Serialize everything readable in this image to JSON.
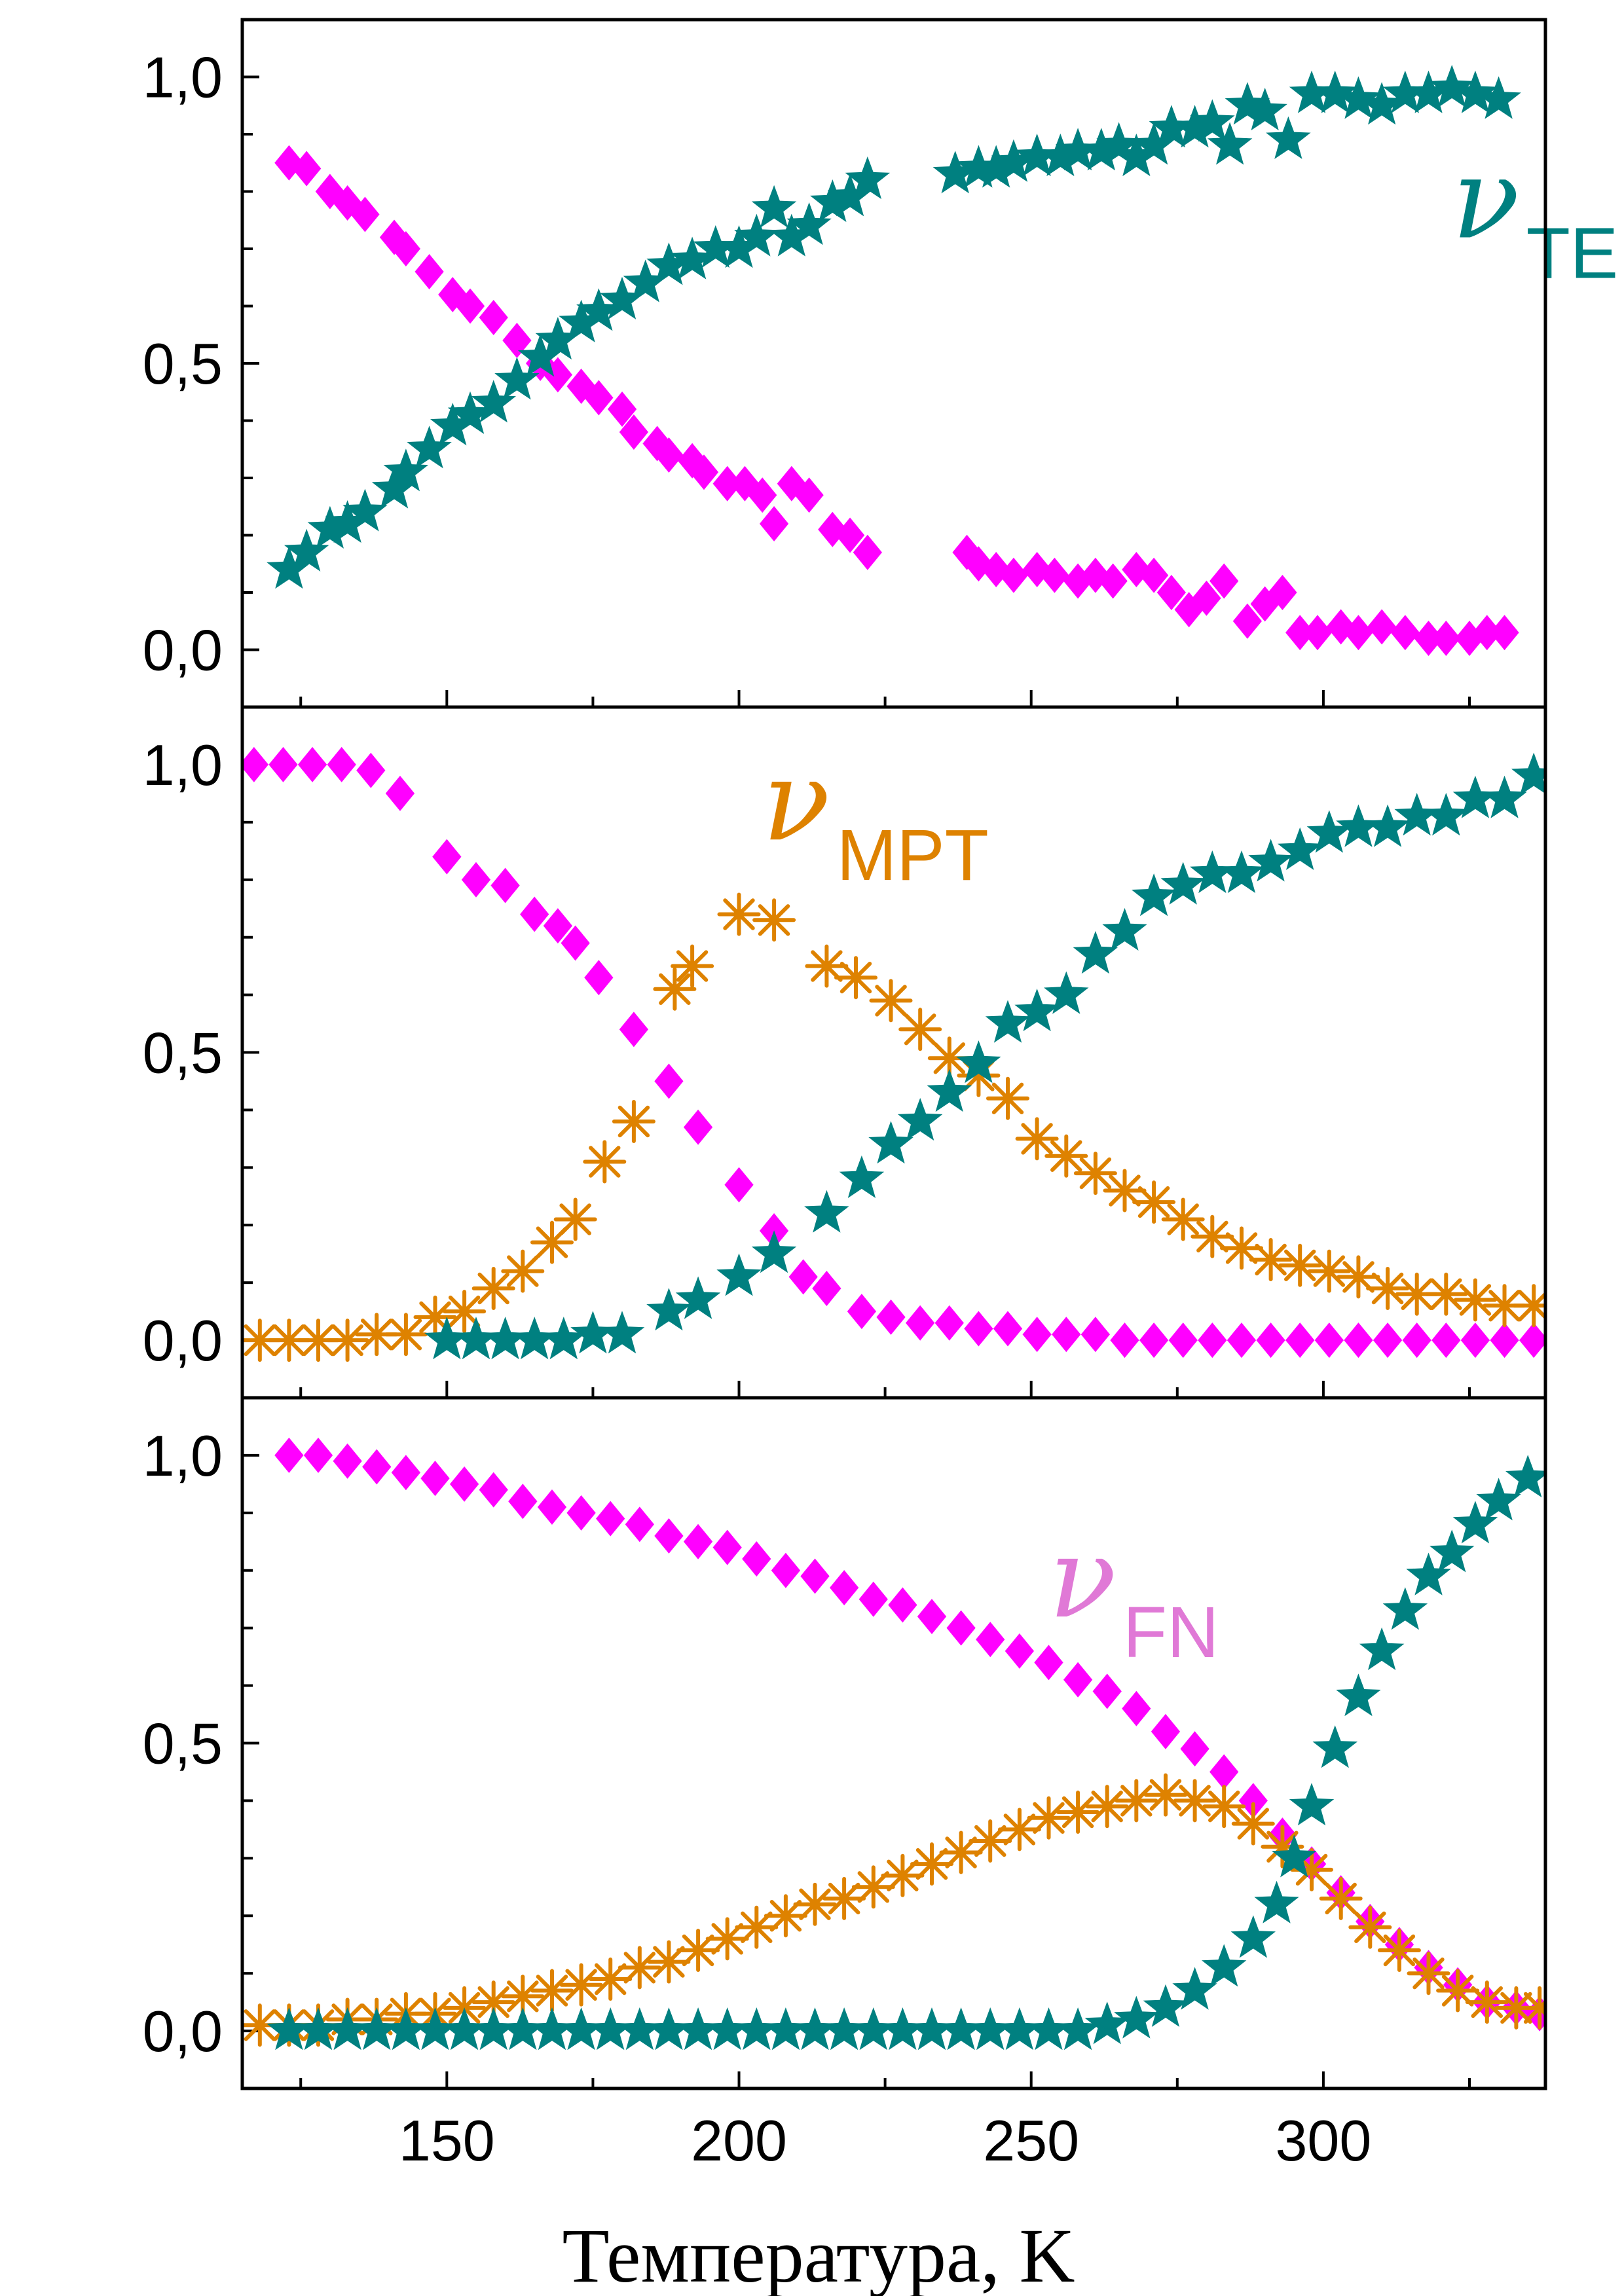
{
  "chart_data": {
    "type": "scatter",
    "layout": "three stacked panels sharing x axis",
    "xlabel": "Температура, K",
    "xlim": [
      115,
      338
    ],
    "x_ticks": [
      150,
      200,
      250,
      300
    ],
    "x_tick_labels": [
      "150",
      "200",
      "250",
      "300"
    ],
    "colors": {
      "magenta": "#ff00ff",
      "orange": "#de8200",
      "teal": "#008080",
      "fn_annot": "#e079d6"
    },
    "panels": [
      {
        "ylim": [
          -0.1,
          1.1
        ],
        "y_ticks": [
          0.0,
          0.5,
          1.0
        ],
        "y_tick_labels": [
          "0,0",
          "0,5",
          "1,0"
        ],
        "annotation": {
          "symbol": "ν",
          "sub": "TE",
          "color": "#008080",
          "x": 322,
          "y": 0.72
        },
        "series": [
          {
            "marker": "diamond",
            "color": "#ff00ff",
            "x": [
              123,
              126,
              130,
              133,
              136,
              141,
              143,
              147,
              151,
              154,
              158,
              162,
              166,
              169,
              173,
              176,
              180,
              182,
              186,
              188,
              192,
              194,
              198,
              201,
              204,
              206,
              209,
              212,
              216,
              219,
              222,
              239,
              241,
              244,
              247,
              251,
              254,
              258,
              261,
              264,
              268,
              271,
              274,
              277,
              280,
              283,
              287,
              290,
              293,
              296,
              299,
              303,
              306,
              310,
              314,
              318,
              321,
              325,
              328,
              331
            ],
            "y": [
              0.85,
              0.84,
              0.8,
              0.78,
              0.76,
              0.72,
              0.7,
              0.66,
              0.62,
              0.6,
              0.58,
              0.54,
              0.5,
              0.48,
              0.46,
              0.44,
              0.42,
              0.38,
              0.36,
              0.34,
              0.33,
              0.31,
              0.29,
              0.29,
              0.27,
              0.22,
              0.29,
              0.27,
              0.21,
              0.2,
              0.17,
              0.17,
              0.15,
              0.14,
              0.13,
              0.14,
              0.13,
              0.12,
              0.13,
              0.12,
              0.14,
              0.13,
              0.1,
              0.07,
              0.09,
              0.12,
              0.05,
              0.08,
              0.1,
              0.03,
              0.03,
              0.04,
              0.03,
              0.04,
              0.03,
              0.02,
              0.02,
              0.02,
              0.03,
              0.03
            ]
          },
          {
            "marker": "star",
            "color": "#008080",
            "x": [
              123,
              126,
              130,
              133,
              136,
              141,
              143,
              147,
              151,
              154,
              158,
              162,
              166,
              169,
              173,
              176,
              180,
              184,
              188,
              192,
              196,
              200,
              203,
              206,
              209,
              212,
              216,
              219,
              222,
              237,
              241,
              244,
              247,
              251,
              255,
              258,
              262,
              265,
              268,
              271,
              274,
              278,
              281,
              284,
              287,
              290,
              294,
              298,
              302,
              306,
              310,
              314,
              318,
              322,
              326,
              330
            ],
            "y": [
              0.14,
              0.17,
              0.21,
              0.22,
              0.24,
              0.28,
              0.31,
              0.35,
              0.39,
              0.41,
              0.43,
              0.47,
              0.51,
              0.54,
              0.57,
              0.59,
              0.61,
              0.64,
              0.67,
              0.68,
              0.7,
              0.7,
              0.72,
              0.77,
              0.72,
              0.74,
              0.78,
              0.79,
              0.82,
              0.83,
              0.84,
              0.84,
              0.85,
              0.86,
              0.86,
              0.87,
              0.87,
              0.88,
              0.86,
              0.88,
              0.91,
              0.91,
              0.92,
              0.88,
              0.95,
              0.94,
              0.89,
              0.97,
              0.97,
              0.96,
              0.95,
              0.97,
              0.97,
              0.98,
              0.97,
              0.96
            ]
          }
        ]
      },
      {
        "ylim": [
          -0.1,
          1.1
        ],
        "y_ticks": [
          0.0,
          0.5,
          1.0
        ],
        "y_tick_labels": [
          "0,0",
          "0,5",
          "1,0"
        ],
        "annotation": {
          "symbol": "ν",
          "sub": "MPT",
          "color": "#de8200",
          "x": 204,
          "y": 0.87
        },
        "series": [
          {
            "marker": "diamond",
            "color": "#ff00ff",
            "x": [
              117,
              122,
              127,
              132,
              137,
              142,
              150,
              155,
              160,
              165,
              169,
              172,
              176,
              182,
              188,
              193,
              200,
              206,
              211,
              215,
              221,
              226,
              231,
              236,
              241,
              246,
              251,
              256,
              261,
              266,
              271,
              276,
              281,
              286,
              291,
              296,
              301,
              306,
              311,
              316,
              321,
              326,
              331,
              336
            ],
            "y": [
              1.0,
              1.0,
              1.0,
              1.0,
              0.99,
              0.95,
              0.84,
              0.8,
              0.79,
              0.74,
              0.72,
              0.69,
              0.63,
              0.54,
              0.45,
              0.37,
              0.27,
              0.19,
              0.11,
              0.09,
              0.05,
              0.04,
              0.03,
              0.03,
              0.02,
              0.02,
              0.01,
              0.01,
              0.01,
              0.0,
              0.0,
              0.0,
              0.0,
              0.0,
              0.0,
              0.0,
              0.0,
              0.0,
              0.0,
              0.0,
              0.0,
              0.0,
              0.0,
              0.0
            ]
          },
          {
            "marker": "asterisk",
            "color": "#de8200",
            "x": [
              118,
              123,
              128,
              133,
              138,
              143,
              148,
              153,
              158,
              163,
              168,
              172,
              177,
              182,
              189,
              192,
              200,
              206,
              215,
              220,
              226,
              231,
              236,
              241,
              246,
              251,
              256,
              261,
              266,
              271,
              276,
              281,
              286,
              291,
              296,
              301,
              306,
              311,
              316,
              321,
              326,
              331,
              336
            ],
            "y": [
              0.0,
              0.0,
              0.0,
              0.0,
              0.01,
              0.01,
              0.04,
              0.05,
              0.09,
              0.12,
              0.17,
              0.21,
              0.31,
              0.38,
              0.61,
              0.65,
              0.74,
              0.73,
              0.65,
              0.63,
              0.59,
              0.54,
              0.49,
              0.46,
              0.42,
              0.35,
              0.32,
              0.29,
              0.26,
              0.24,
              0.21,
              0.18,
              0.16,
              0.14,
              0.13,
              0.12,
              0.11,
              0.09,
              0.08,
              0.08,
              0.07,
              0.06,
              0.06
            ]
          },
          {
            "marker": "star",
            "color": "#008080",
            "x": [
              150,
              155,
              160,
              165,
              170,
              175,
              180,
              188,
              193,
              200,
              206,
              215,
              221,
              226,
              231,
              236,
              241,
              246,
              251,
              256,
              261,
              266,
              271,
              276,
              281,
              286,
              291,
              296,
              301,
              306,
              311,
              316,
              321,
              326,
              331,
              336
            ],
            "y": [
              0.0,
              0.0,
              0.0,
              0.0,
              0.0,
              0.01,
              0.01,
              0.05,
              0.07,
              0.11,
              0.15,
              0.22,
              0.28,
              0.34,
              0.38,
              0.43,
              0.48,
              0.55,
              0.57,
              0.6,
              0.67,
              0.71,
              0.77,
              0.79,
              0.81,
              0.81,
              0.83,
              0.85,
              0.88,
              0.89,
              0.89,
              0.91,
              0.91,
              0.94,
              0.94,
              0.98
            ]
          }
        ]
      },
      {
        "ylim": [
          -0.1,
          1.1
        ],
        "y_ticks": [
          0.0,
          0.5,
          1.0
        ],
        "y_tick_labels": [
          "0,0",
          "0,5",
          "1,0"
        ],
        "annotation": {
          "symbol": "ν",
          "sub": "FN",
          "color": "#e079d6",
          "x": 253,
          "y": 0.72
        },
        "series": [
          {
            "marker": "diamond",
            "color": "#ff00ff",
            "x": [
              123,
              128,
              133,
              138,
              143,
              148,
              153,
              158,
              163,
              168,
              173,
              178,
              183,
              188,
              193,
              198,
              203,
              208,
              213,
              218,
              223,
              228,
              233,
              238,
              243,
              248,
              253,
              258,
              263,
              268,
              273,
              278,
              283,
              288,
              293,
              298,
              303,
              308,
              313,
              318,
              323,
              328,
              333,
              337
            ],
            "y": [
              1.0,
              1.0,
              0.99,
              0.98,
              0.97,
              0.96,
              0.95,
              0.94,
              0.92,
              0.91,
              0.9,
              0.89,
              0.88,
              0.86,
              0.85,
              0.84,
              0.82,
              0.8,
              0.79,
              0.77,
              0.75,
              0.74,
              0.72,
              0.7,
              0.68,
              0.66,
              0.64,
              0.61,
              0.59,
              0.56,
              0.52,
              0.49,
              0.45,
              0.4,
              0.34,
              0.29,
              0.24,
              0.19,
              0.15,
              0.11,
              0.08,
              0.05,
              0.04,
              0.03
            ]
          },
          {
            "marker": "asterisk",
            "color": "#de8200",
            "x": [
              118,
              123,
              128,
              133,
              138,
              143,
              148,
              153,
              158,
              163,
              168,
              173,
              178,
              183,
              188,
              193,
              198,
              203,
              208,
              213,
              218,
              223,
              228,
              233,
              238,
              243,
              248,
              253,
              258,
              263,
              268,
              273,
              278,
              283,
              288,
              293,
              298,
              303,
              308,
              313,
              318,
              323,
              328,
              333,
              337
            ],
            "y": [
              0.01,
              0.01,
              0.01,
              0.02,
              0.02,
              0.03,
              0.03,
              0.04,
              0.05,
              0.06,
              0.07,
              0.08,
              0.09,
              0.11,
              0.12,
              0.14,
              0.16,
              0.18,
              0.2,
              0.22,
              0.23,
              0.25,
              0.27,
              0.29,
              0.31,
              0.33,
              0.35,
              0.37,
              0.38,
              0.39,
              0.4,
              0.41,
              0.4,
              0.39,
              0.36,
              0.32,
              0.28,
              0.23,
              0.18,
              0.14,
              0.1,
              0.07,
              0.05,
              0.04,
              0.04
            ]
          },
          {
            "marker": "star",
            "color": "#008080",
            "x": [
              123,
              128,
              133,
              138,
              143,
              148,
              153,
              158,
              163,
              168,
              173,
              178,
              183,
              188,
              193,
              198,
              203,
              208,
              213,
              218,
              223,
              228,
              233,
              238,
              243,
              248,
              253,
              258,
              263,
              268,
              273,
              278,
              283,
              288,
              292,
              295,
              298,
              302,
              306,
              310,
              314,
              318,
              322,
              326,
              330,
              335
            ],
            "y": [
              0.0,
              0.0,
              0.0,
              0.0,
              0.0,
              0.0,
              0.0,
              0.0,
              0.0,
              0.0,
              0.0,
              0.0,
              0.0,
              0.0,
              0.0,
              0.0,
              0.0,
              0.0,
              0.0,
              0.0,
              0.0,
              0.0,
              0.0,
              0.0,
              0.0,
              0.0,
              0.0,
              0.0,
              0.01,
              0.02,
              0.04,
              0.07,
              0.11,
              0.16,
              0.22,
              0.3,
              0.39,
              0.49,
              0.58,
              0.66,
              0.73,
              0.79,
              0.83,
              0.88,
              0.92,
              0.96
            ]
          }
        ]
      }
    ]
  }
}
